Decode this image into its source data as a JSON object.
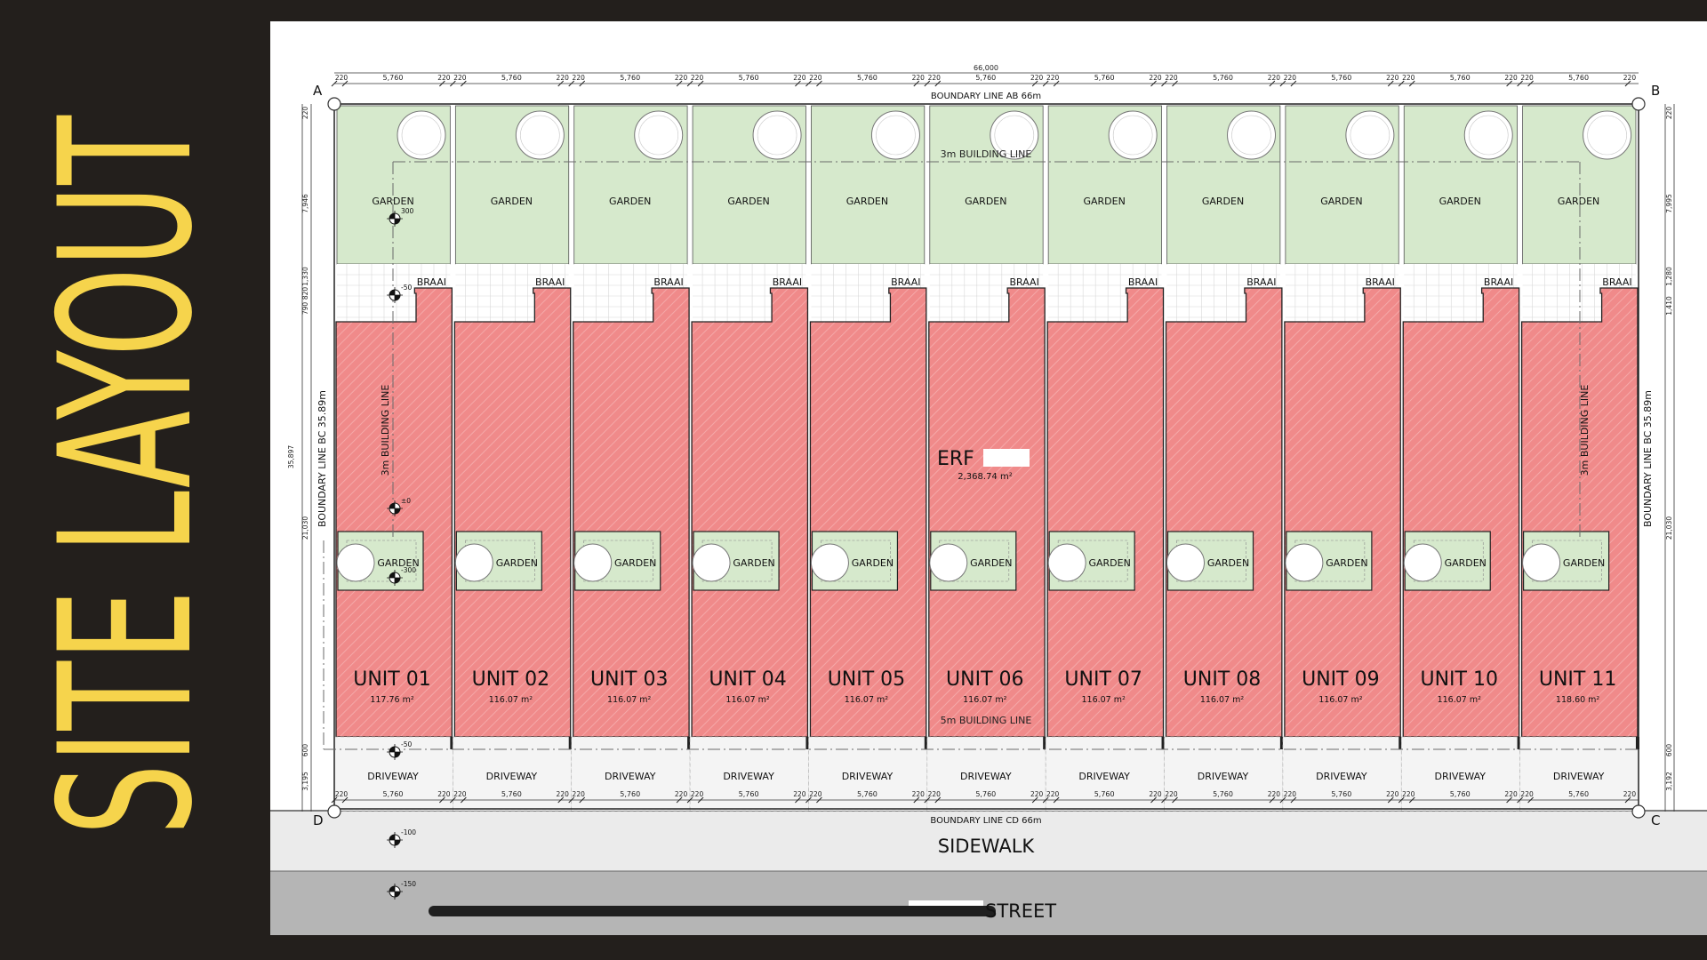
{
  "title": "SITE LAYOUT",
  "colors": {
    "background": "#231f1c",
    "title": "#f6d44c",
    "unit_fill": "#f08a8a",
    "garden_fill": "#d6e9cc",
    "sidewalk": "#ebebeb",
    "street": "#b5b5b5"
  },
  "plan": {
    "overall_dim": "66,000",
    "unit_width_dim": "5,760",
    "wall_dim": "220",
    "boundary_ab": "BOUNDARY LINE AB 66m",
    "boundary_cd": "BOUNDARY LINE CD 66m",
    "boundary_bc": "BOUNDARY LINE BC 35.89m",
    "building_line_top": "3m BUILDING LINE",
    "building_line_side": "3m BUILDING LINE",
    "building_line_front": "5m BUILDING LINE",
    "corners": [
      "A",
      "B",
      "C",
      "D"
    ],
    "erf_label": "ERF",
    "erf_area": "2,368.74 m²",
    "garden_label": "GARDEN",
    "braai_label": "BRAAI",
    "driveway_label": "DRIVEWAY",
    "sidewalk_label": "SIDEWALK",
    "street_label": "STREET",
    "left_dims": [
      "220",
      "7,946",
      "1,330",
      "820",
      "790",
      "35,897",
      "21,030",
      "600",
      "3,195"
    ],
    "right_dims": [
      "220",
      "7,995",
      "1,280",
      "1,410",
      "21,030",
      "600",
      "3,192"
    ],
    "level_marks": [
      "300",
      "-50",
      "±0",
      "-300",
      "-50",
      "-100",
      "-150"
    ],
    "units": [
      {
        "name": "UNIT 01",
        "area": "117.76 m²"
      },
      {
        "name": "UNIT 02",
        "area": "116.07 m²"
      },
      {
        "name": "UNIT 03",
        "area": "116.07 m²"
      },
      {
        "name": "UNIT 04",
        "area": "116.07 m²"
      },
      {
        "name": "UNIT 05",
        "area": "116.07 m²"
      },
      {
        "name": "UNIT 06",
        "area": "116.07 m²"
      },
      {
        "name": "UNIT 07",
        "area": "116.07 m²"
      },
      {
        "name": "UNIT 08",
        "area": "116.07 m²"
      },
      {
        "name": "UNIT 09",
        "area": "116.07 m²"
      },
      {
        "name": "UNIT 10",
        "area": "116.07 m²"
      },
      {
        "name": "UNIT 11",
        "area": "118.60 m²"
      }
    ]
  }
}
